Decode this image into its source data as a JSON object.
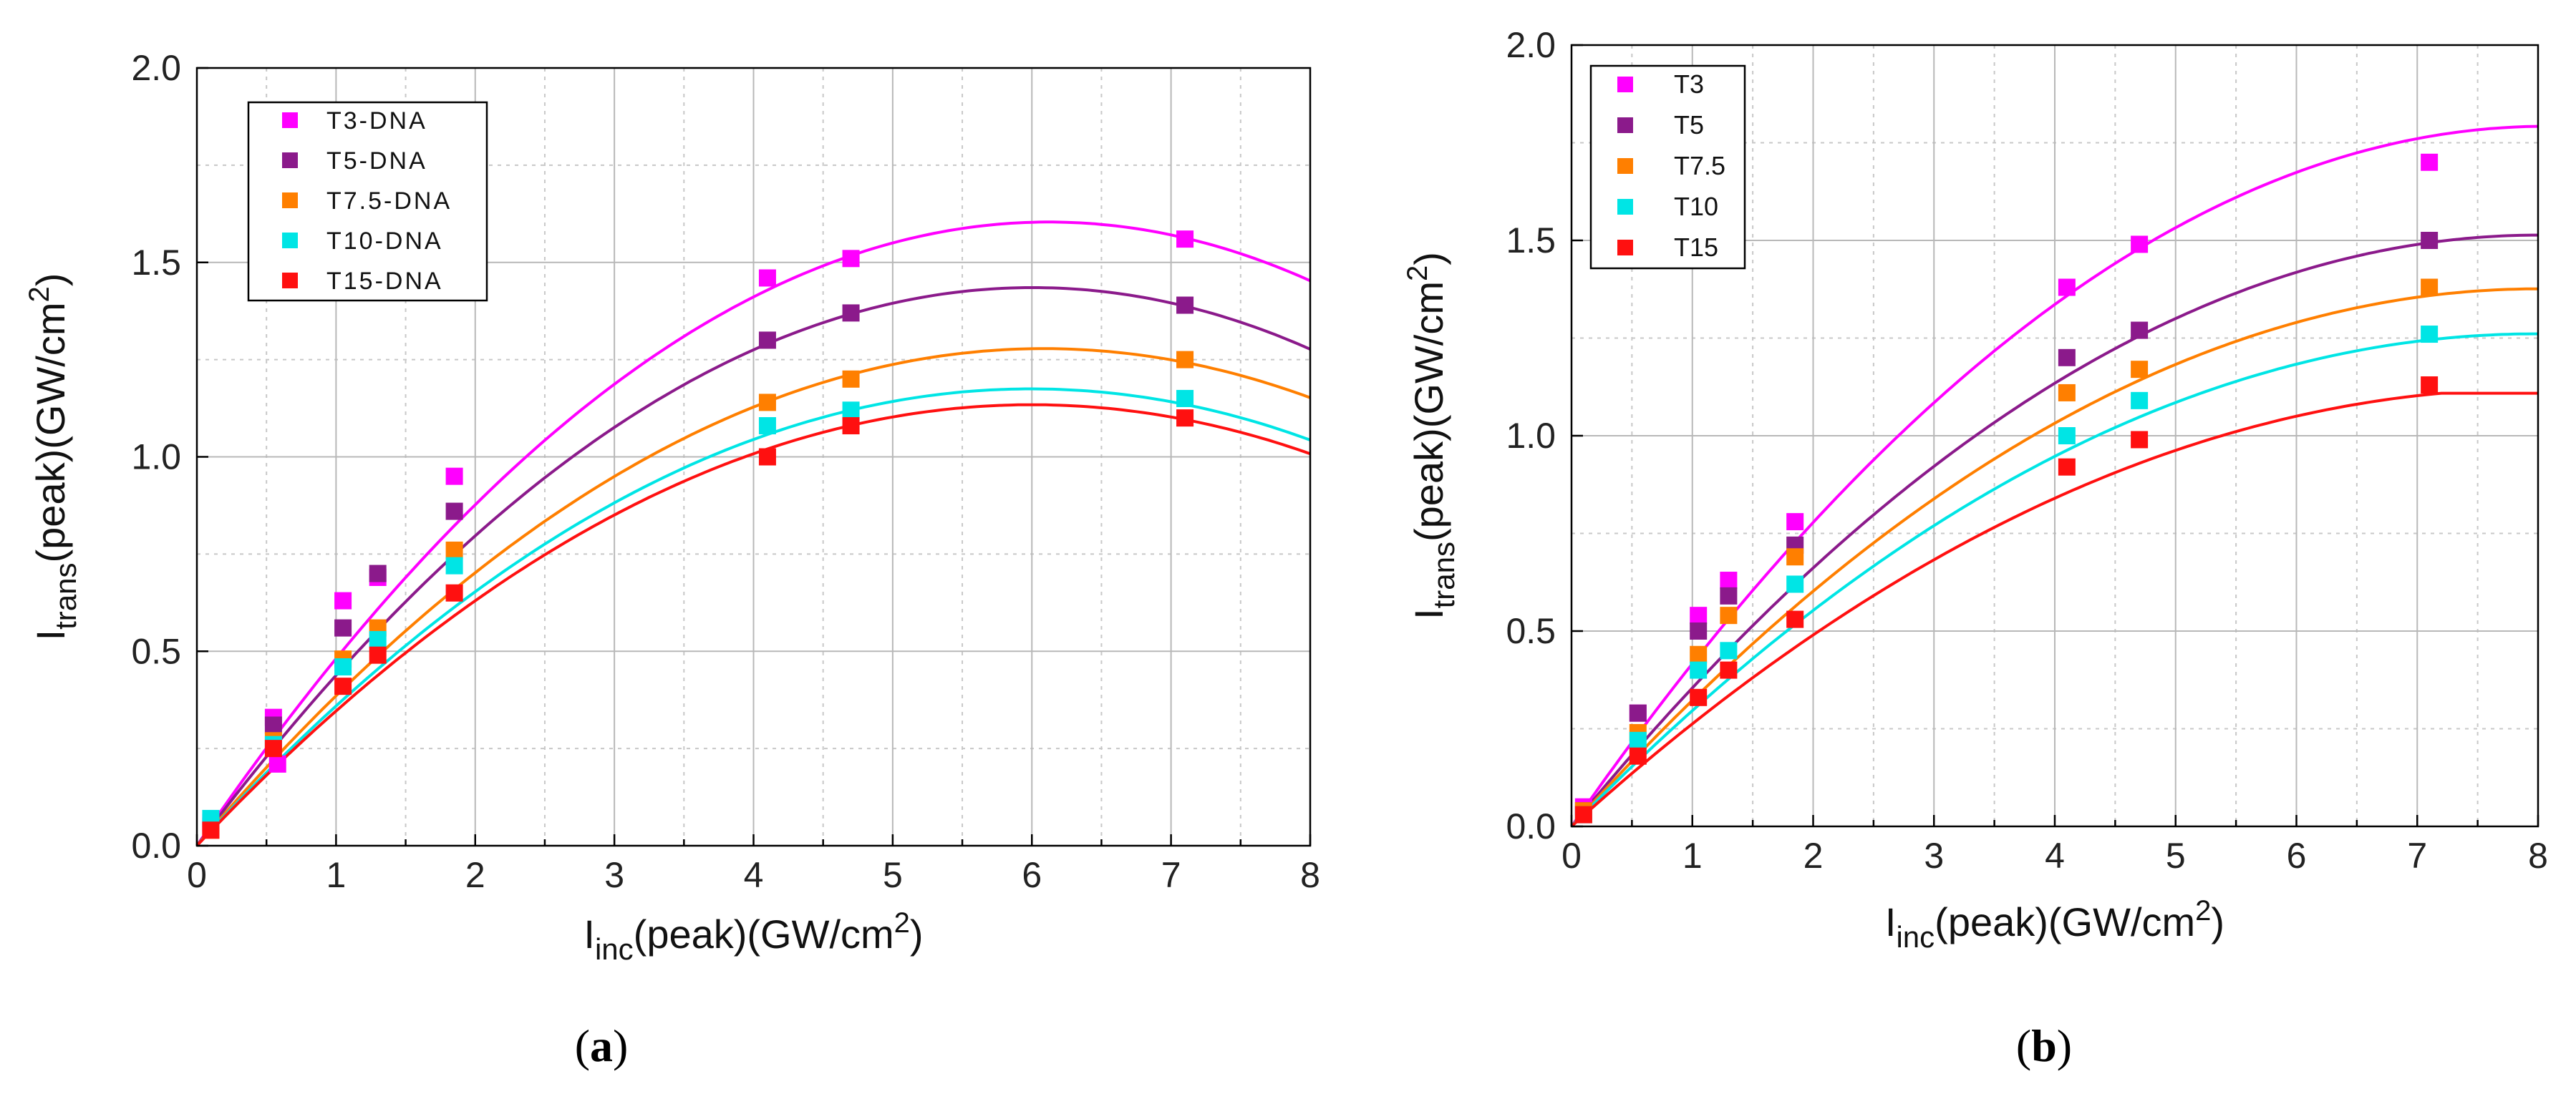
{
  "chart_data": [
    {
      "panel": "a",
      "type": "scatter",
      "caption_letter": "a",
      "caption": "(a)",
      "xlabel": {
        "main": "I",
        "sub": "inc",
        "rest": "(peak)(GW/cm",
        "sup": "2",
        "end": ")"
      },
      "ylabel": {
        "main": "I",
        "sub": "trans",
        "rest": "(peak)(GW/cm",
        "sup": "2",
        "end": ")"
      },
      "xlim": [
        0,
        8
      ],
      "ylim": [
        0,
        2
      ],
      "xticks": [
        "0",
        "1",
        "2",
        "3",
        "4",
        "5",
        "6",
        "7",
        "8"
      ],
      "yticks": [
        "0.0",
        "0.5",
        "1.0",
        "1.5",
        "2.0"
      ],
      "grid": true,
      "legend_position": "top-left",
      "series": [
        {
          "name": "T3-DNA",
          "color": "#ff00ff",
          "points": [
            [
              0.1,
              0.06
            ],
            [
              0.55,
              0.33
            ],
            [
              0.58,
              0.21
            ],
            [
              1.05,
              0.63
            ],
            [
              1.3,
              0.69
            ],
            [
              1.85,
              0.95
            ],
            [
              4.1,
              1.46
            ],
            [
              4.7,
              1.51
            ],
            [
              7.1,
              1.56
            ]
          ],
          "fit": {
            "model": "a*x + b*x^2",
            "a": 0.524,
            "b": -0.0428
          }
        },
        {
          "name": "T5-DNA",
          "color": "#8b1a8b",
          "points": [
            [
              0.1,
              0.05
            ],
            [
              0.55,
              0.31
            ],
            [
              1.05,
              0.56
            ],
            [
              1.3,
              0.7
            ],
            [
              1.85,
              0.86
            ],
            [
              4.1,
              1.3
            ],
            [
              4.7,
              1.37
            ],
            [
              7.1,
              1.39
            ]
          ],
          "fit": {
            "model": "a*x + b*x^2",
            "a": 0.478,
            "b": -0.0398
          }
        },
        {
          "name": "T7.5-DNA",
          "color": "#ff7f00",
          "points": [
            [
              0.1,
              0.04
            ],
            [
              0.55,
              0.27
            ],
            [
              1.05,
              0.48
            ],
            [
              1.3,
              0.56
            ],
            [
              1.85,
              0.76
            ],
            [
              4.1,
              1.14
            ],
            [
              4.7,
              1.2
            ],
            [
              7.1,
              1.25
            ]
          ],
          "fit": {
            "model": "a*x + b*x^2",
            "a": 0.42,
            "b": -0.0345
          }
        },
        {
          "name": "T10-DNA",
          "color": "#00e5e5",
          "points": [
            [
              0.1,
              0.07
            ],
            [
              0.55,
              0.26
            ],
            [
              1.05,
              0.46
            ],
            [
              1.3,
              0.53
            ],
            [
              1.85,
              0.72
            ],
            [
              4.1,
              1.08
            ],
            [
              4.7,
              1.12
            ],
            [
              7.1,
              1.15
            ]
          ],
          "fit": {
            "model": "a*x + b*x^2",
            "a": 0.392,
            "b": -0.0327
          }
        },
        {
          "name": "T15-DNA",
          "color": "#ff1010",
          "points": [
            [
              0.1,
              0.04
            ],
            [
              0.55,
              0.25
            ],
            [
              1.05,
              0.41
            ],
            [
              1.3,
              0.49
            ],
            [
              1.85,
              0.65
            ],
            [
              4.1,
              1.0
            ],
            [
              4.7,
              1.08
            ],
            [
              7.1,
              1.1
            ]
          ],
          "fit": {
            "model": "a*x + b*x^2",
            "a": 0.378,
            "b": -0.0315
          }
        }
      ]
    },
    {
      "panel": "b",
      "type": "scatter",
      "caption_letter": "b",
      "caption": "(b)",
      "xlabel": {
        "main": "I",
        "sub": "inc",
        "rest": "(peak)(GW/cm",
        "sup": "2",
        "end": ")"
      },
      "ylabel": {
        "main": "I",
        "sub": "trans",
        "rest": "(peak)(GW/cm",
        "sup": "2",
        "end": ")"
      },
      "xlim": [
        0,
        8
      ],
      "ylim": [
        0,
        2
      ],
      "xticks": [
        "0",
        "1",
        "2",
        "3",
        "4",
        "5",
        "6",
        "7",
        "8"
      ],
      "yticks": [
        "0.0",
        "0.5",
        "1.0",
        "1.5",
        "2.0"
      ],
      "grid": true,
      "legend_position": "top-left",
      "series": [
        {
          "name": "T3",
          "color": "#ff00ff",
          "points": [
            [
              0.1,
              0.05
            ],
            [
              0.55,
              0.29
            ],
            [
              1.05,
              0.54
            ],
            [
              1.3,
              0.63
            ],
            [
              1.85,
              0.78
            ],
            [
              4.1,
              1.38
            ],
            [
              4.7,
              1.49
            ],
            [
              7.1,
              1.7
            ]
          ],
          "fit": {
            "model": "a*x + b*x^2",
            "a": 0.444,
            "b": -0.0275
          }
        },
        {
          "name": "T5",
          "color": "#8b1a8b",
          "points": [
            [
              0.1,
              0.04
            ],
            [
              0.55,
              0.29
            ],
            [
              1.05,
              0.5
            ],
            [
              1.3,
              0.59
            ],
            [
              1.85,
              0.72
            ],
            [
              4.1,
              1.2
            ],
            [
              4.7,
              1.27
            ],
            [
              7.1,
              1.5
            ]
          ],
          "fit": {
            "model": "a*x + b*x^2",
            "a": 0.378,
            "b": -0.0236
          }
        },
        {
          "name": "T7.5",
          "color": "#ff7f00",
          "points": [
            [
              0.1,
              0.04
            ],
            [
              0.55,
              0.24
            ],
            [
              1.05,
              0.44
            ],
            [
              1.3,
              0.54
            ],
            [
              1.85,
              0.69
            ],
            [
              4.1,
              1.11
            ],
            [
              4.7,
              1.17
            ],
            [
              7.1,
              1.38
            ]
          ],
          "fit": {
            "model": "a*x + b*x^2",
            "a": 0.344,
            "b": -0.0215
          }
        },
        {
          "name": "T10",
          "color": "#00e5e5",
          "points": [
            [
              0.1,
              0.03
            ],
            [
              0.55,
              0.22
            ],
            [
              1.05,
              0.4
            ],
            [
              1.3,
              0.45
            ],
            [
              1.85,
              0.62
            ],
            [
              4.1,
              1.0
            ],
            [
              4.7,
              1.09
            ],
            [
              7.1,
              1.26
            ]
          ],
          "fit": {
            "model": "a*x + b*x^2",
            "a": 0.316,
            "b": -0.0198
          }
        },
        {
          "name": "T15",
          "color": "#ff1010",
          "points": [
            [
              0.1,
              0.03
            ],
            [
              0.55,
              0.18
            ],
            [
              1.05,
              0.33
            ],
            [
              1.3,
              0.4
            ],
            [
              1.85,
              0.53
            ],
            [
              4.1,
              0.92
            ],
            [
              4.7,
              0.99
            ],
            [
              7.1,
              1.13
            ]
          ],
          "fit": {
            "model": "a*x + b*x^2",
            "a": 0.28,
            "b": -0.0175,
            "plateau_after": 7.2
          }
        }
      ]
    }
  ]
}
